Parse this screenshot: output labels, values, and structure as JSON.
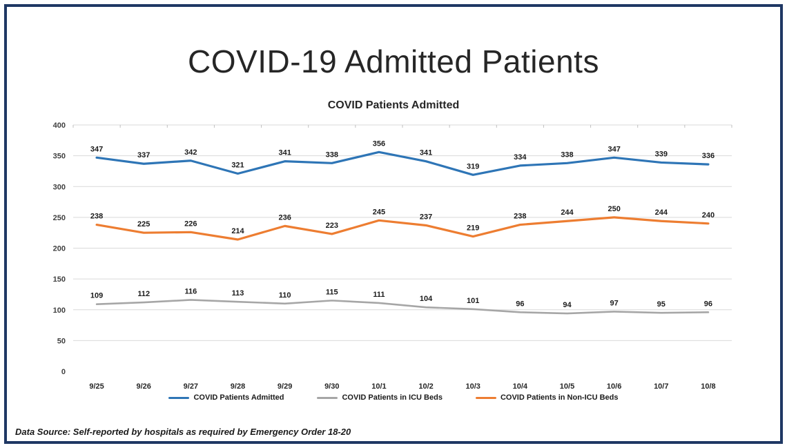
{
  "page": {
    "title": "COVID-19 Admitted Patients",
    "footer": "Data Source: Self-reported by hospitals as required by Emergency Order 18-20",
    "border_color": "#1F3864"
  },
  "chart_data": {
    "type": "line",
    "title": "COVID Patients Admitted",
    "categories": [
      "9/25",
      "9/26",
      "9/27",
      "9/28",
      "9/29",
      "9/30",
      "10/1",
      "10/2",
      "10/3",
      "10/4",
      "10/5",
      "10/6",
      "10/7",
      "10/8"
    ],
    "series": [
      {
        "name": "COVID Patients Admitted",
        "color": "#2E75B6",
        "values": [
          347,
          337,
          342,
          321,
          341,
          338,
          356,
          341,
          319,
          334,
          338,
          347,
          339,
          336
        ]
      },
      {
        "name": "COVID Patients in ICU Beds",
        "color": "#A6A6A6",
        "values": [
          109,
          112,
          116,
          113,
          110,
          115,
          111,
          104,
          101,
          96,
          94,
          97,
          95,
          96
        ]
      },
      {
        "name": "COVID Patients in Non-ICU Beds",
        "color": "#ED7D31",
        "values": [
          238,
          225,
          226,
          214,
          236,
          223,
          245,
          237,
          219,
          238,
          244,
          250,
          244,
          240
        ]
      }
    ],
    "xlabel": "",
    "ylabel": "",
    "ylim": [
      0,
      400
    ],
    "ytick_step": 50,
    "grid": true,
    "gridline_color": "#D9D9D9",
    "legend_position": "bottom",
    "data_labels": true
  }
}
